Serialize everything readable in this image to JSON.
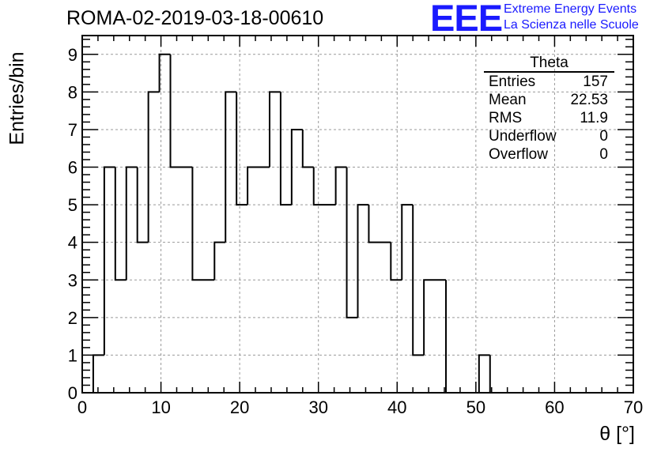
{
  "header": {
    "title": "ROMA-02-2019-03-18-00610",
    "logo": "EEE",
    "logo_line1": "Extreme Energy Events",
    "logo_line2": "La Scienza nelle Scuole"
  },
  "stats": {
    "name": "Theta",
    "rows": [
      {
        "label": "Entries",
        "value": "157"
      },
      {
        "label": "Mean",
        "value": "22.53"
      },
      {
        "label": "RMS",
        "value": "11.9"
      },
      {
        "label": "Underflow",
        "value": "0"
      },
      {
        "label": "Overflow",
        "value": "0"
      }
    ]
  },
  "colors": {
    "logo": "#1a1aff",
    "line": "#000000",
    "grid": "#999999"
  },
  "chart_data": {
    "type": "histogram",
    "xlabel": "θ [°]",
    "ylabel": "Entries/bin",
    "xlim": [
      0,
      70
    ],
    "ylim": [
      0,
      9.5
    ],
    "grid": true,
    "bin_width": 1.4,
    "x_ticks": [
      0,
      10,
      20,
      30,
      40,
      50,
      60,
      70
    ],
    "y_ticks": [
      0,
      1,
      2,
      3,
      4,
      5,
      6,
      7,
      8,
      9
    ],
    "bin_edges_start": 1.4,
    "values": [
      1,
      6,
      3,
      6,
      4,
      8,
      9,
      6,
      6,
      3,
      3,
      4,
      8,
      5,
      6,
      6,
      8,
      5,
      7,
      6,
      5,
      5,
      6,
      2,
      5,
      4,
      4,
      3,
      5,
      1,
      3,
      3,
      0,
      0,
      0,
      1
    ]
  }
}
